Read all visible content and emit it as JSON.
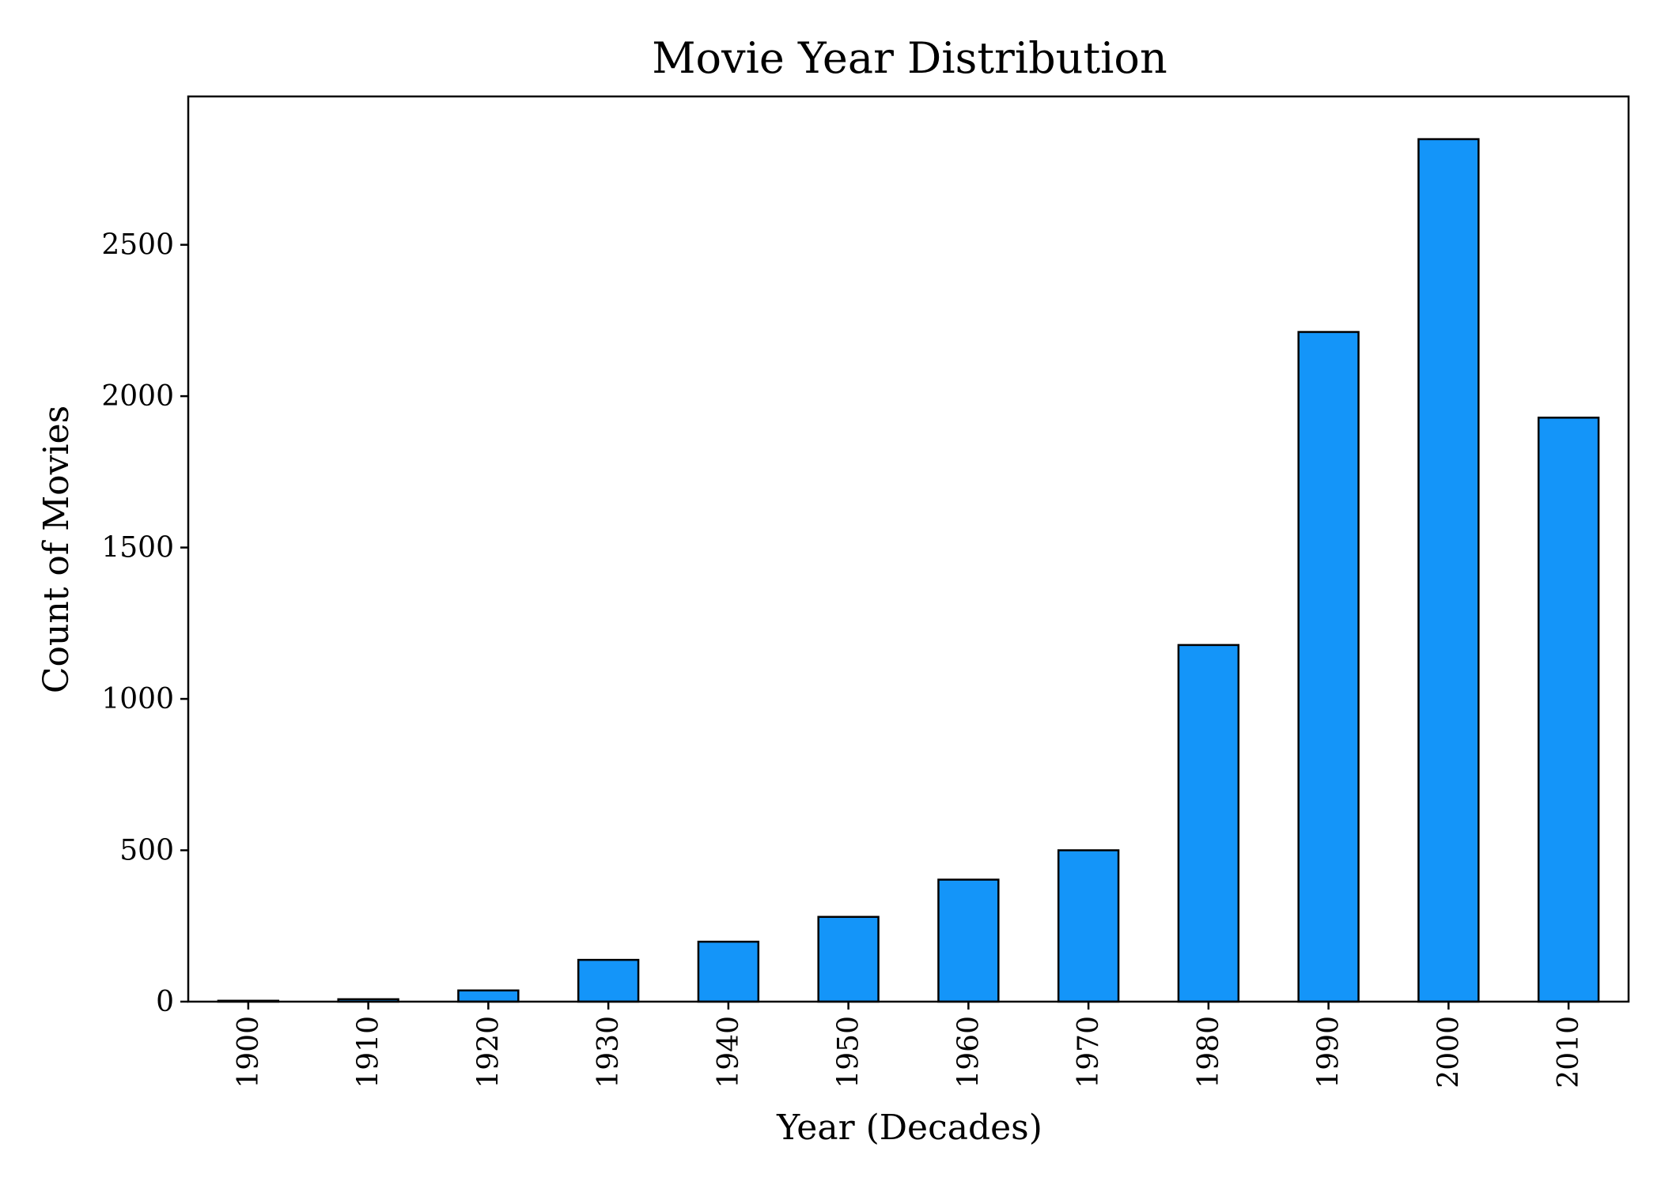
{
  "chart_data": {
    "type": "bar",
    "title": "Movie Year Distribution",
    "xlabel": "Year (Decades)",
    "ylabel": "Count of Movies",
    "categories": [
      "1900",
      "1910",
      "1920",
      "1930",
      "1940",
      "1950",
      "1960",
      "1970",
      "1980",
      "1990",
      "2000",
      "2010"
    ],
    "values": [
      3,
      8,
      37,
      138,
      198,
      280,
      403,
      500,
      1178,
      2212,
      2849,
      1929
    ],
    "ylim": [
      0,
      2990
    ],
    "yticks": [
      0,
      500,
      1000,
      1500,
      2000,
      2500
    ],
    "ytick_labels": [
      "0",
      "500",
      "1000",
      "1500",
      "2000",
      "2500"
    ],
    "xtick_rotation": "vertical",
    "grid": false,
    "legend": "none",
    "colors": {
      "bar_fill": "#1495F9",
      "bar_edge": "#000000",
      "axes": "#000000",
      "background": "#ffffff"
    }
  }
}
